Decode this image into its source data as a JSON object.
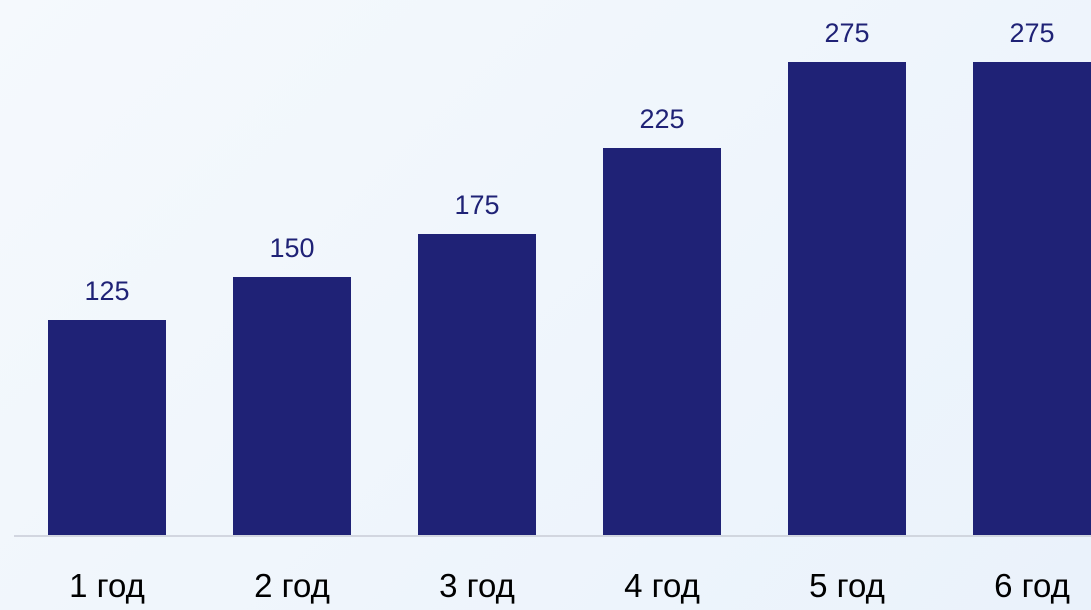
{
  "chart_data": {
    "type": "bar",
    "categories": [
      "1 год",
      "2 год",
      "3 год",
      "4 год",
      "5 год",
      "6 год"
    ],
    "values": [
      125,
      150,
      175,
      225,
      275,
      275
    ],
    "title": "",
    "xlabel": "",
    "ylabel": "",
    "ylim": [
      0,
      300
    ],
    "grid": false,
    "legend": "none",
    "colors": {
      "bar": "#1f2276",
      "data_label": "#1f2276",
      "tick_label": "#000000",
      "axis_line": "#c8ccd6"
    }
  }
}
